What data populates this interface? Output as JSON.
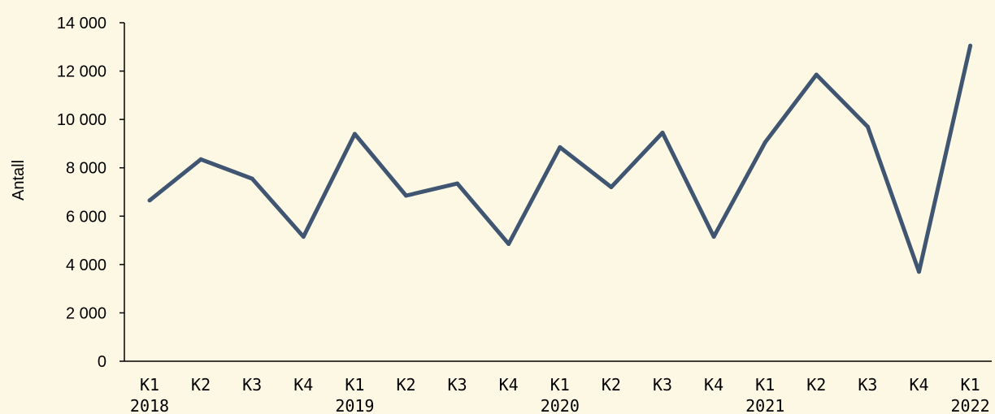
{
  "chart_data": {
    "type": "line",
    "title": "",
    "xlabel": "",
    "ylabel": "Antall",
    "ylim": [
      0,
      14000
    ],
    "yticks": [
      0,
      2000,
      4000,
      6000,
      8000,
      10000,
      12000,
      14000
    ],
    "ytick_labels": [
      "0",
      "2 000",
      "4 000",
      "6 000",
      "8 000",
      "10 000",
      "12 000",
      "14 000"
    ],
    "grid": false,
    "legend": "none",
    "categories": [
      "K1",
      "K2",
      "K3",
      "K4",
      "K1",
      "K2",
      "K3",
      "K4",
      "K1",
      "K2",
      "K3",
      "K4",
      "K1",
      "K2",
      "K3",
      "K4",
      "K1"
    ],
    "years": [
      {
        "label": "2018",
        "index": 0
      },
      {
        "label": "2019",
        "index": 4
      },
      {
        "label": "2020",
        "index": 8
      },
      {
        "label": "2021",
        "index": 12
      },
      {
        "label": "2022",
        "index": 16
      }
    ],
    "series": [
      {
        "values": [
          6650,
          8350,
          7550,
          5150,
          9400,
          6850,
          7350,
          4850,
          8850,
          7200,
          9450,
          5150,
          9050,
          11850,
          9700,
          3700,
          13050
        ],
        "color": "#3f5571"
      }
    ],
    "colors": {
      "background": "#fdf8e4",
      "axis": "#000000",
      "line": "#3f5571"
    }
  }
}
